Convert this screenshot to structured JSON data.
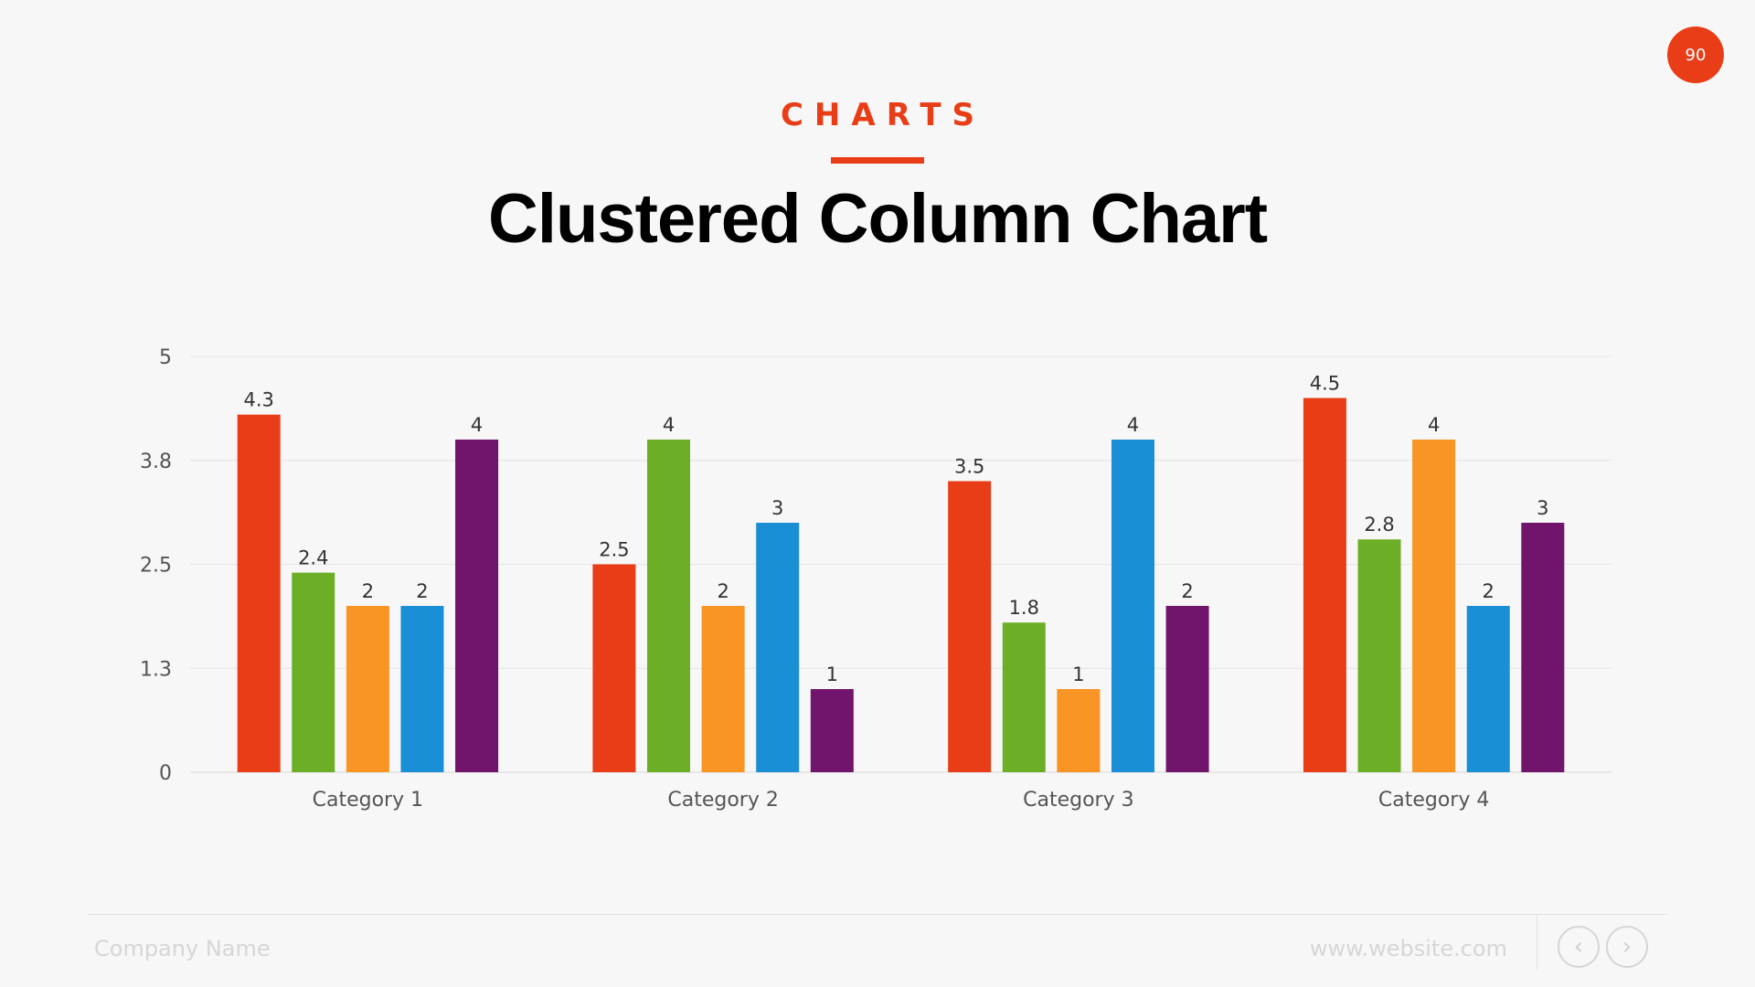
{
  "slide": {
    "page_number": "90",
    "kicker": "CHARTS",
    "title": "Clustered Column Chart"
  },
  "footer": {
    "company": "Company Name",
    "website": "www.website.com",
    "prev_icon": "chevron-left-icon",
    "next_icon": "chevron-right-icon"
  },
  "colors": {
    "accent": "#e83d16",
    "series": [
      "#e83d16",
      "#6caf27",
      "#f89525",
      "#1a8fd6",
      "#71146b"
    ]
  },
  "chart_data": {
    "type": "bar",
    "categories": [
      "Category 1",
      "Category 2",
      "Category 3",
      "Category 4"
    ],
    "series": [
      {
        "values": [
          4.3,
          2.5,
          3.5,
          4.5
        ]
      },
      {
        "values": [
          2.4,
          4,
          1.8,
          2.8
        ]
      },
      {
        "values": [
          2,
          2,
          1,
          4
        ]
      },
      {
        "values": [
          2,
          3,
          4,
          2
        ]
      },
      {
        "values": [
          4,
          1,
          2,
          3
        ]
      }
    ],
    "ylim": [
      0,
      5
    ],
    "yticks": [
      {
        "value": 0,
        "label": "0"
      },
      {
        "value": 1.25,
        "label": "1.3"
      },
      {
        "value": 2.5,
        "label": "2.5"
      },
      {
        "value": 3.75,
        "label": "3.8"
      },
      {
        "value": 5,
        "label": "5"
      }
    ],
    "grid": true,
    "legend": "none",
    "data_labels": true
  }
}
